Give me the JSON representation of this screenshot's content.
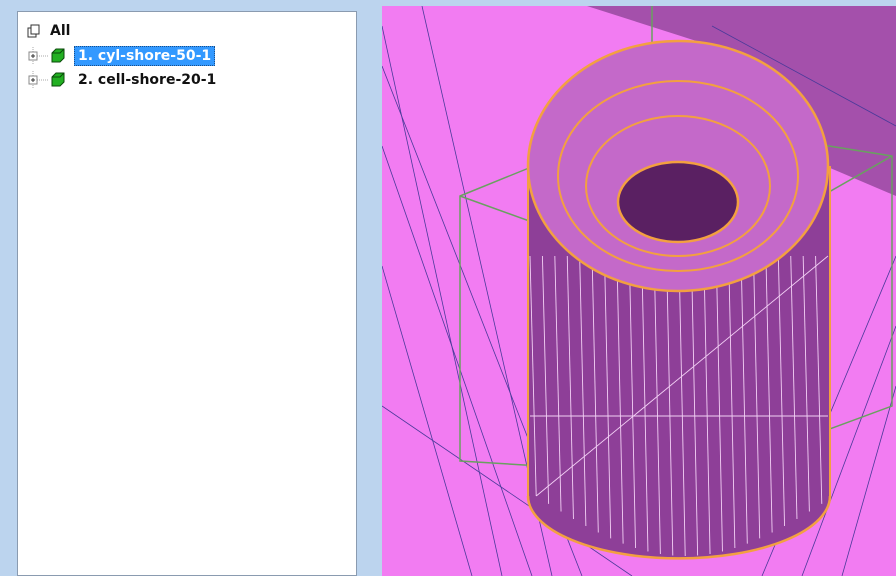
{
  "tree": {
    "root": {
      "label": "All"
    },
    "items": [
      {
        "label": "1. cyl-shore-50-1",
        "selected": true
      },
      {
        "label": "2. cell-shore-20-1",
        "selected": false
      }
    ]
  }
}
